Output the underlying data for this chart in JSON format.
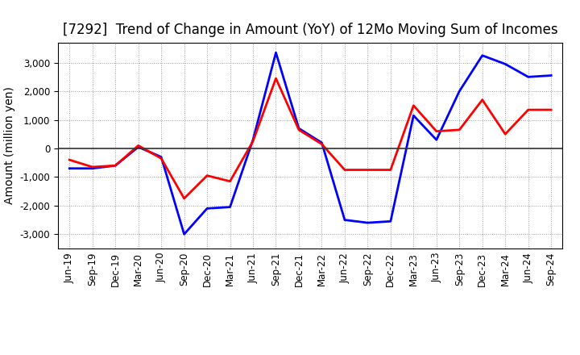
{
  "title": "[7292]  Trend of Change in Amount (YoY) of 12Mo Moving Sum of Incomes",
  "ylabel": "Amount (million yen)",
  "x_labels": [
    "Jun-19",
    "Sep-19",
    "Dec-19",
    "Mar-20",
    "Jun-20",
    "Sep-20",
    "Dec-20",
    "Mar-21",
    "Jun-21",
    "Sep-21",
    "Dec-21",
    "Mar-22",
    "Jun-22",
    "Sep-22",
    "Dec-22",
    "Mar-23",
    "Jun-23",
    "Sep-23",
    "Dec-23",
    "Mar-24",
    "Jun-24",
    "Sep-24"
  ],
  "ordinary_income": [
    -700,
    -700,
    -600,
    50,
    -300,
    -3000,
    -2100,
    -2050,
    300,
    3350,
    700,
    200,
    -2500,
    -2600,
    -2550,
    1150,
    300,
    2000,
    3250,
    2950,
    2500,
    2550
  ],
  "net_income": [
    -400,
    -650,
    -600,
    100,
    -350,
    -1750,
    -950,
    -1150,
    250,
    2450,
    650,
    150,
    -750,
    -750,
    -750,
    1500,
    600,
    650,
    1700,
    500,
    1350,
    1350
  ],
  "ordinary_color": "#0000ff",
  "net_color": "#ff0000",
  "ylim": [
    -3500,
    3700
  ],
  "yticks": [
    -3000,
    -2000,
    -1000,
    0,
    1000,
    2000,
    3000
  ],
  "background_color": "#ffffff",
  "grid_color": "#999999",
  "line_width": 2.0,
  "title_fontsize": 12,
  "axis_fontsize": 10,
  "tick_fontsize": 8.5
}
